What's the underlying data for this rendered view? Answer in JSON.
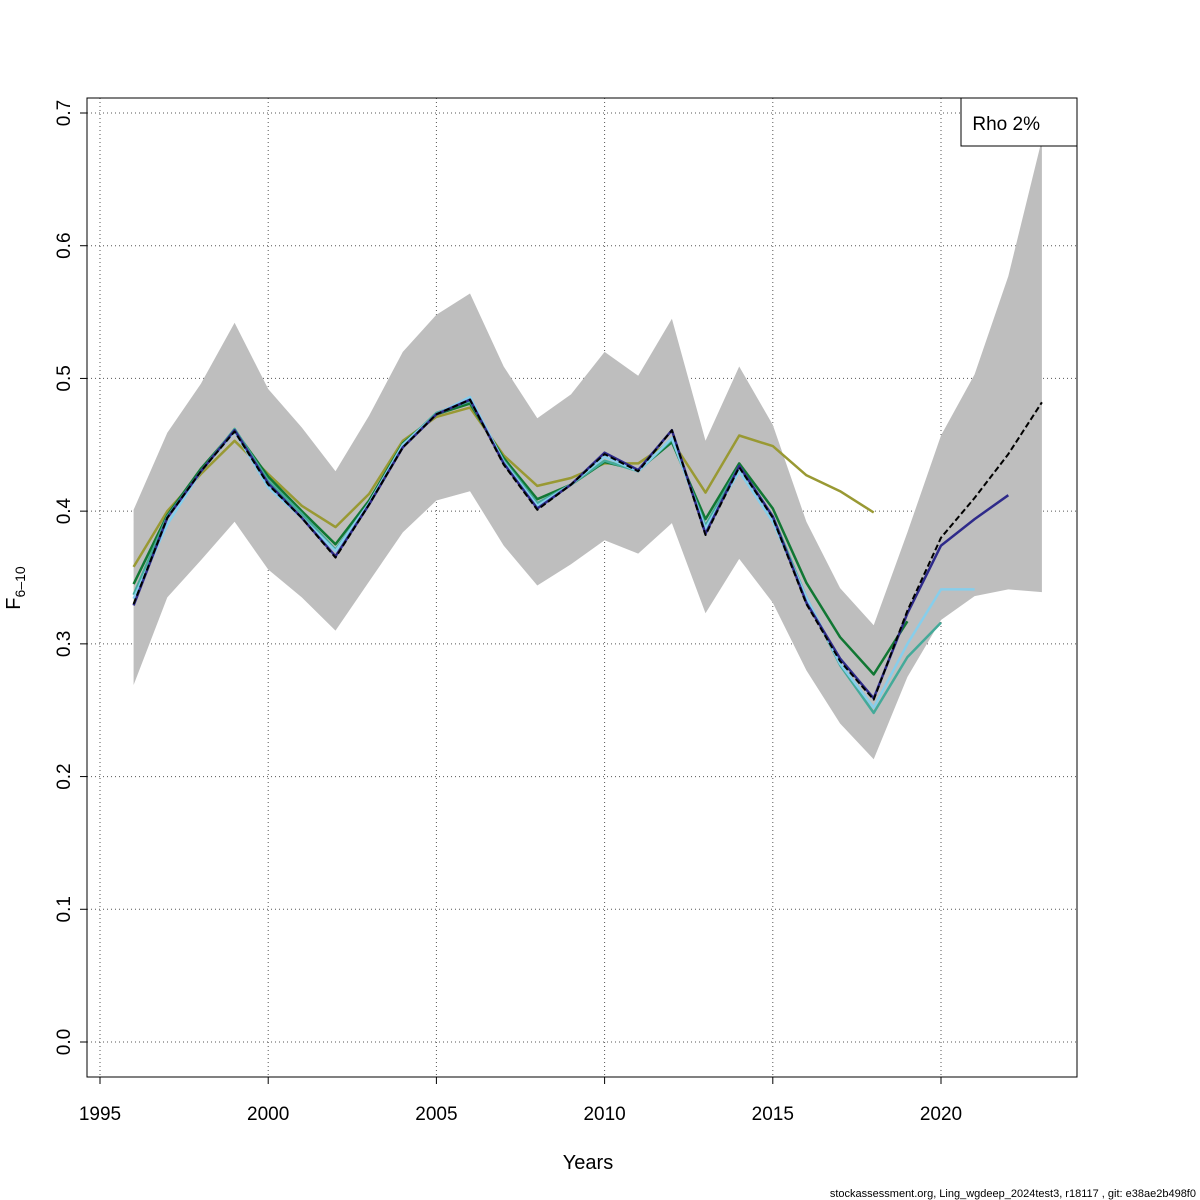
{
  "chart_data": {
    "type": "line",
    "xlabel": "Years",
    "ylabel": "F",
    "ylabel_subscript": "6–10",
    "xlim": [
      1995,
      2024
    ],
    "ylim": [
      0,
      0.7
    ],
    "x_ticks": [
      1995,
      2000,
      2005,
      2010,
      2015,
      2020
    ],
    "y_ticks": [
      0.0,
      0.1,
      0.2,
      0.3,
      0.4,
      0.5,
      0.6,
      0.7
    ],
    "y_tick_labels": [
      "0.0",
      "0.1",
      "0.2",
      "0.3",
      "0.4",
      "0.5",
      "0.6",
      "0.7"
    ],
    "grid": true,
    "legend": {
      "position": "top-right",
      "text": "Rho 2%"
    },
    "footer": "stockassessment.org, Ling_wgdeep_2024test3, r18117 , git: e38ae2b498f0",
    "band": {
      "color": "#bebebe",
      "x": [
        1996,
        1997,
        1998,
        1999,
        2000,
        2001,
        2002,
        2003,
        2004,
        2005,
        2006,
        2007,
        2008,
        2009,
        2010,
        2011,
        2012,
        2013,
        2014,
        2015,
        2016,
        2017,
        2018,
        2019,
        2020,
        2021,
        2022,
        2023
      ],
      "upper": [
        0.401,
        0.459,
        0.496,
        0.542,
        0.492,
        0.463,
        0.43,
        0.472,
        0.52,
        0.548,
        0.564,
        0.509,
        0.47,
        0.488,
        0.52,
        0.502,
        0.545,
        0.453,
        0.509,
        0.465,
        0.392,
        0.342,
        0.314,
        0.384,
        0.457,
        0.503,
        0.577,
        0.68
      ],
      "lower": [
        0.269,
        0.335,
        0.363,
        0.392,
        0.356,
        0.335,
        0.31,
        0.347,
        0.384,
        0.408,
        0.415,
        0.374,
        0.344,
        0.36,
        0.378,
        0.368,
        0.391,
        0.323,
        0.364,
        0.331,
        0.28,
        0.24,
        0.213,
        0.275,
        0.318,
        0.336,
        0.341,
        0.339
      ]
    },
    "series": [
      {
        "color": "#000000",
        "width": 2,
        "dash": "6,3",
        "x": [
          1996,
          1997,
          1998,
          1999,
          2000,
          2001,
          2002,
          2003,
          2004,
          2005,
          2006,
          2007,
          2008,
          2009,
          2010,
          2011,
          2012,
          2013,
          2014,
          2015,
          2016,
          2017,
          2018,
          2019,
          2020,
          2021,
          2022,
          2023
        ],
        "y": [
          0.33,
          0.395,
          0.43,
          0.46,
          0.42,
          0.395,
          0.365,
          0.405,
          0.448,
          0.473,
          0.484,
          0.435,
          0.401,
          0.42,
          0.443,
          0.43,
          0.461,
          0.382,
          0.433,
          0.395,
          0.33,
          0.287,
          0.258,
          0.325,
          0.38,
          0.41,
          0.443,
          0.482
        ]
      },
      {
        "color": "#2e2a8a",
        "width": 2.5,
        "dash": "",
        "x": [
          1996,
          1997,
          1998,
          1999,
          2000,
          2001,
          2002,
          2003,
          2004,
          2005,
          2006,
          2007,
          2008,
          2009,
          2010,
          2011,
          2012,
          2013,
          2014,
          2015,
          2016,
          2017,
          2018,
          2019,
          2020,
          2021,
          2022
        ],
        "y": [
          0.329,
          0.395,
          0.43,
          0.461,
          0.421,
          0.395,
          0.366,
          0.405,
          0.448,
          0.473,
          0.484,
          0.436,
          0.402,
          0.42,
          0.444,
          0.431,
          0.461,
          0.383,
          0.434,
          0.396,
          0.331,
          0.289,
          0.259,
          0.323,
          0.374,
          0.394,
          0.412
        ]
      },
      {
        "color": "#87ceeb",
        "width": 2.5,
        "dash": "",
        "x": [
          1996,
          1997,
          1998,
          1999,
          2000,
          2001,
          2002,
          2003,
          2004,
          2005,
          2006,
          2007,
          2008,
          2009,
          2010,
          2011,
          2012,
          2013,
          2014,
          2015,
          2016,
          2017,
          2018,
          2019,
          2020,
          2021
        ],
        "y": [
          0.334,
          0.39,
          0.43,
          0.46,
          0.418,
          0.395,
          0.37,
          0.406,
          0.45,
          0.473,
          0.486,
          0.437,
          0.404,
          0.42,
          0.441,
          0.43,
          0.455,
          0.387,
          0.43,
          0.392,
          0.335,
          0.285,
          0.252,
          0.3,
          0.341,
          0.341
        ]
      },
      {
        "color": "#44aa99",
        "width": 2.5,
        "dash": "",
        "x": [
          1996,
          1997,
          1998,
          1999,
          2000,
          2001,
          2002,
          2003,
          2004,
          2005,
          2006,
          2007,
          2008,
          2009,
          2010,
          2011,
          2012,
          2013,
          2014,
          2015,
          2016,
          2017,
          2018,
          2019,
          2020
        ],
        "y": [
          0.337,
          0.396,
          0.43,
          0.462,
          0.423,
          0.398,
          0.371,
          0.406,
          0.45,
          0.474,
          0.483,
          0.438,
          0.406,
          0.42,
          0.438,
          0.43,
          0.454,
          0.389,
          0.434,
          0.396,
          0.335,
          0.284,
          0.248,
          0.29,
          0.316
        ]
      },
      {
        "color": "#117733",
        "width": 2.5,
        "dash": "",
        "x": [
          1996,
          1997,
          1998,
          1999,
          2000,
          2001,
          2002,
          2003,
          2004,
          2005,
          2006,
          2007,
          2008,
          2009,
          2010,
          2011,
          2012,
          2013,
          2014,
          2015,
          2016,
          2017,
          2018,
          2019
        ],
        "y": [
          0.345,
          0.397,
          0.432,
          0.461,
          0.426,
          0.4,
          0.375,
          0.408,
          0.451,
          0.473,
          0.481,
          0.44,
          0.409,
          0.42,
          0.437,
          0.431,
          0.452,
          0.394,
          0.436,
          0.402,
          0.346,
          0.305,
          0.277,
          0.317
        ]
      },
      {
        "color": "#999933",
        "width": 2.5,
        "dash": "",
        "x": [
          1996,
          1997,
          1998,
          1999,
          2000,
          2001,
          2002,
          2003,
          2004,
          2005,
          2006,
          2007,
          2008,
          2009,
          2010,
          2011,
          2012,
          2013,
          2014,
          2015,
          2016,
          2017,
          2018
        ],
        "y": [
          0.358,
          0.4,
          0.428,
          0.453,
          0.428,
          0.404,
          0.388,
          0.413,
          0.453,
          0.471,
          0.478,
          0.442,
          0.419,
          0.425,
          0.436,
          0.436,
          0.453,
          0.414,
          0.457,
          0.449,
          0.427,
          0.415,
          0.399
        ]
      }
    ]
  }
}
